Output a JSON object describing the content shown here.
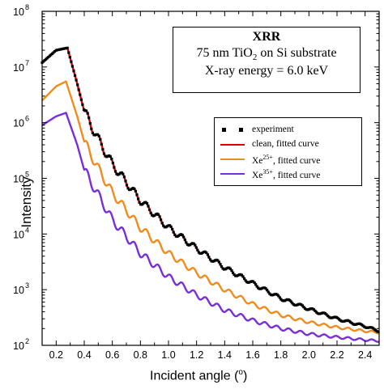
{
  "chart_data": {
    "type": "line",
    "xlabel_text": "Incident angle (",
    "xlabel_degree": "o",
    "xlabel_close": ")",
    "ylabel": "Intensity",
    "y_scale": "log",
    "xlim": [
      0.1,
      2.5
    ],
    "ylim": [
      100,
      100000000
    ],
    "x_ticks": [
      "0.2",
      "0.4",
      "0.6",
      "0.8",
      "1.0",
      "1.2",
      "1.4",
      "1.6",
      "1.8",
      "2.0",
      "2.2",
      "2.4"
    ],
    "y_ticks": [
      {
        "base": "10",
        "exp": "2",
        "value": 100
      },
      {
        "base": "10",
        "exp": "3",
        "value": 1000
      },
      {
        "base": "10",
        "exp": "4",
        "value": 10000
      },
      {
        "base": "10",
        "exp": "5",
        "value": 100000
      },
      {
        "base": "10",
        "exp": "6",
        "value": 1000000
      },
      {
        "base": "10",
        "exp": "7",
        "value": 10000000
      },
      {
        "base": "10",
        "exp": "8",
        "value": 100000000
      }
    ],
    "grid": false,
    "legend_position": "upper-right",
    "series": [
      {
        "name": "experiment",
        "style": "square-markers",
        "color": "#000000",
        "points": [
          [
            0.1,
            12000000.0
          ],
          [
            0.2,
            20000000.0
          ],
          [
            0.28,
            22000000.0
          ],
          [
            0.35,
            5000000.0
          ],
          [
            0.4,
            1600000.0
          ],
          [
            0.5,
            500000.0
          ],
          [
            0.6,
            180000.0
          ],
          [
            0.8,
            40000.0
          ],
          [
            1.0,
            13000.0
          ],
          [
            1.2,
            5500.0
          ],
          [
            1.4,
            2500.0
          ],
          [
            1.6,
            1300.0
          ],
          [
            1.8,
            700.0
          ],
          [
            2.0,
            450.0
          ],
          [
            2.2,
            300.0
          ],
          [
            2.4,
            220.0
          ],
          [
            2.5,
            180.0
          ]
        ]
      },
      {
        "name_prefix": "clean",
        "name_suffix": ", fitted curve",
        "color": "#dd0000",
        "points": [
          [
            0.1,
            12000000.0
          ],
          [
            0.2,
            20000000.0
          ],
          [
            0.28,
            22000000.0
          ],
          [
            0.35,
            5000000.0
          ],
          [
            0.4,
            1600000.0
          ],
          [
            0.5,
            500000.0
          ],
          [
            0.6,
            180000.0
          ],
          [
            0.8,
            40000.0
          ],
          [
            1.0,
            13000.0
          ],
          [
            1.2,
            5500.0
          ],
          [
            1.4,
            2500.0
          ],
          [
            1.6,
            1300.0
          ],
          [
            1.8,
            700.0
          ],
          [
            2.0,
            450.0
          ],
          [
            2.2,
            300.0
          ],
          [
            2.4,
            220.0
          ],
          [
            2.5,
            180.0
          ]
        ]
      },
      {
        "name_prefix": "Xe",
        "name_sup": "25+",
        "name_suffix": ", fitted curve",
        "color": "#f08c1e",
        "points": [
          [
            0.1,
            2500000.0
          ],
          [
            0.2,
            4500000.0
          ],
          [
            0.27,
            5500000.0
          ],
          [
            0.35,
            1300000.0
          ],
          [
            0.4,
            450000.0
          ],
          [
            0.5,
            150000.0
          ],
          [
            0.6,
            55000.0
          ],
          [
            0.8,
            13000.0
          ],
          [
            1.0,
            4500.0
          ],
          [
            1.2,
            2000.0
          ],
          [
            1.4,
            1000.0
          ],
          [
            1.6,
            550.0
          ],
          [
            1.8,
            350.0
          ],
          [
            2.0,
            260.0
          ],
          [
            2.2,
            210.0
          ],
          [
            2.4,
            180.0
          ],
          [
            2.5,
            170.0
          ]
        ]
      },
      {
        "name_prefix": "Xe",
        "name_sup": "35+",
        "name_suffix": ", fitted curve",
        "color": "#7a2fd6",
        "points": [
          [
            0.1,
            900000.0
          ],
          [
            0.2,
            1300000.0
          ],
          [
            0.27,
            1500000.0
          ],
          [
            0.35,
            400000.0
          ],
          [
            0.4,
            140000.0
          ],
          [
            0.5,
            50000.0
          ],
          [
            0.6,
            18000.0
          ],
          [
            0.8,
            4500.0
          ],
          [
            1.0,
            1700.0
          ],
          [
            1.2,
            800.0
          ],
          [
            1.4,
            430.0
          ],
          [
            1.6,
            280.0
          ],
          [
            1.8,
            200.0
          ],
          [
            2.0,
            160.0
          ],
          [
            2.2,
            140.0
          ],
          [
            2.4,
            125.0
          ],
          [
            2.5,
            120.0
          ]
        ]
      }
    ]
  },
  "info_box": {
    "title": "XRR",
    "line1_pre": "75 nm TiO",
    "line1_sub": "2",
    "line1_post": " on Si substrate",
    "line2": "X-ray energy = 6.0 keV"
  }
}
